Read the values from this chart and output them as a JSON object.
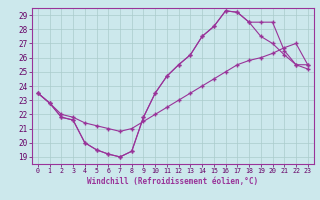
{
  "xlabel": "Windchill (Refroidissement éolien,°C)",
  "bg_color": "#cce8ec",
  "grid_color": "#aacccc",
  "line_color": "#993399",
  "xlim": [
    -0.5,
    23.5
  ],
  "ylim": [
    18.5,
    29.5
  ],
  "xticks": [
    0,
    1,
    2,
    3,
    4,
    5,
    6,
    7,
    8,
    9,
    10,
    11,
    12,
    13,
    14,
    15,
    16,
    17,
    18,
    19,
    20,
    21,
    22,
    23
  ],
  "yticks": [
    19,
    20,
    21,
    22,
    23,
    24,
    25,
    26,
    27,
    28,
    29
  ],
  "line1_x": [
    0,
    1,
    2,
    3,
    4,
    5,
    6,
    7,
    8,
    9,
    10,
    11,
    12,
    13,
    14,
    15,
    16,
    17,
    18,
    19,
    20,
    21,
    22,
    23
  ],
  "line1_y": [
    23.5,
    22.8,
    22.0,
    21.8,
    21.4,
    21.2,
    21.0,
    20.8,
    21.0,
    21.5,
    22.0,
    22.5,
    23.0,
    23.5,
    24.0,
    24.5,
    25.0,
    25.5,
    25.8,
    26.0,
    26.3,
    26.7,
    27.0,
    25.5
  ],
  "line2_x": [
    0,
    1,
    2,
    3,
    4,
    5,
    6,
    7,
    8,
    9,
    10,
    11,
    12,
    13,
    14,
    15,
    16,
    17,
    18,
    19,
    20,
    21,
    22,
    23
  ],
  "line2_y": [
    23.5,
    22.8,
    21.8,
    21.6,
    20.0,
    19.5,
    19.2,
    19.0,
    19.4,
    21.8,
    23.5,
    24.7,
    25.5,
    26.2,
    27.5,
    28.2,
    29.3,
    29.2,
    28.5,
    27.5,
    27.0,
    26.2,
    25.5,
    25.5
  ],
  "line3_x": [
    0,
    1,
    2,
    3,
    4,
    5,
    6,
    7,
    8,
    9,
    10,
    11,
    12,
    13,
    14,
    15,
    16,
    17,
    18,
    19,
    20,
    21,
    22,
    23
  ],
  "line3_y": [
    23.5,
    22.8,
    21.8,
    21.6,
    20.0,
    19.5,
    19.2,
    19.0,
    19.4,
    21.8,
    23.5,
    24.7,
    25.5,
    26.2,
    27.5,
    28.2,
    29.3,
    29.2,
    28.5,
    28.5,
    28.5,
    26.5,
    25.5,
    25.2
  ]
}
